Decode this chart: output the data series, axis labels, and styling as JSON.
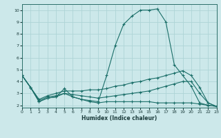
{
  "xlabel": "Humidex (Indice chaleur)",
  "background_color": "#cce8ea",
  "grid_color": "#aed4d6",
  "line_color": "#1a6e68",
  "xlim": [
    0,
    23
  ],
  "ylim": [
    1.8,
    10.5
  ],
  "xticks": [
    0,
    1,
    2,
    3,
    4,
    5,
    6,
    7,
    8,
    9,
    10,
    11,
    12,
    13,
    14,
    15,
    16,
    17,
    18,
    19,
    20,
    21,
    22,
    23
  ],
  "yticks": [
    2,
    3,
    4,
    5,
    6,
    7,
    8,
    9,
    10
  ],
  "series": [
    {
      "x": [
        0,
        1,
        2,
        3,
        4,
        5,
        6,
        7,
        8,
        9,
        10,
        11,
        12,
        13,
        14,
        15,
        16,
        17,
        18,
        19,
        20,
        21,
        22,
        23
      ],
      "y": [
        4.5,
        3.5,
        2.3,
        2.6,
        2.7,
        3.4,
        2.7,
        2.5,
        2.4,
        2.3,
        4.5,
        7.0,
        8.8,
        9.5,
        10.0,
        10.0,
        10.1,
        9.0,
        5.4,
        4.5,
        3.6,
        2.2,
        2.0,
        1.9
      ]
    },
    {
      "x": [
        0,
        1,
        2,
        3,
        4,
        5,
        6,
        7,
        8,
        9,
        10,
        11,
        12,
        13,
        14,
        15,
        16,
        17,
        18,
        19,
        20,
        21,
        22,
        23
      ],
      "y": [
        4.5,
        3.5,
        2.5,
        2.8,
        3.0,
        3.2,
        3.2,
        3.2,
        3.3,
        3.3,
        3.4,
        3.6,
        3.7,
        3.9,
        4.0,
        4.2,
        4.3,
        4.5,
        4.7,
        4.9,
        4.5,
        3.5,
        2.2,
        1.9
      ]
    },
    {
      "x": [
        0,
        1,
        2,
        3,
        4,
        5,
        6,
        7,
        8,
        9,
        10,
        11,
        12,
        13,
        14,
        15,
        16,
        17,
        18,
        19,
        20,
        21,
        22,
        23
      ],
      "y": [
        4.5,
        3.5,
        2.4,
        2.7,
        2.8,
        3.0,
        2.9,
        2.8,
        2.7,
        2.6,
        2.7,
        2.8,
        2.9,
        3.0,
        3.1,
        3.2,
        3.4,
        3.6,
        3.8,
        4.0,
        4.0,
        3.0,
        2.2,
        1.9
      ]
    },
    {
      "x": [
        0,
        1,
        2,
        3,
        4,
        5,
        6,
        7,
        8,
        9,
        10,
        11,
        12,
        13,
        14,
        15,
        16,
        17,
        18,
        19,
        20,
        21,
        22,
        23
      ],
      "y": [
        4.5,
        3.5,
        2.3,
        2.6,
        2.7,
        3.0,
        2.7,
        2.5,
        2.3,
        2.2,
        2.3,
        2.3,
        2.3,
        2.3,
        2.3,
        2.3,
        2.2,
        2.2,
        2.2,
        2.2,
        2.2,
        2.1,
        2.0,
        1.9
      ]
    }
  ]
}
